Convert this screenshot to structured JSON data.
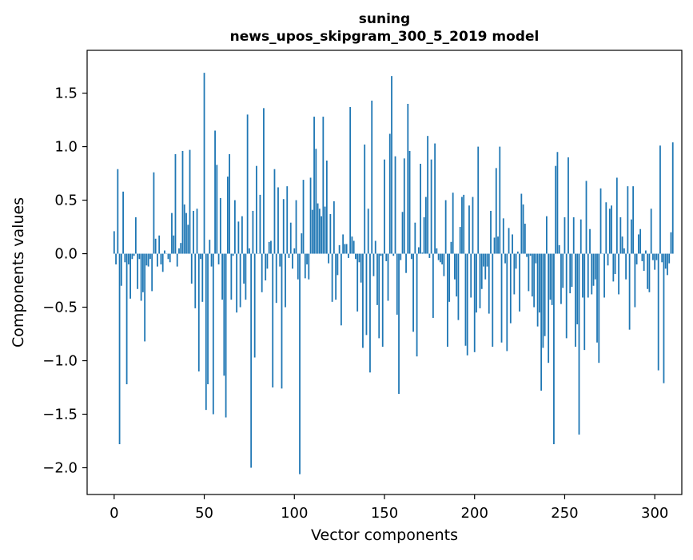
{
  "chart_data": {
    "type": "bar",
    "title_line1": "suning",
    "title_line2": "news_upos_skipgram_300_5_2019 model",
    "xlabel": "Vector components",
    "ylabel": "Components values",
    "xlim": [
      -15,
      315
    ],
    "ylim": [
      -2.25,
      1.9
    ],
    "xticks": [
      0,
      50,
      100,
      150,
      200,
      250,
      300
    ],
    "xtick_labels": [
      "0",
      "50",
      "100",
      "150",
      "200",
      "250",
      "300"
    ],
    "yticks": [
      -2.0,
      -1.5,
      -1.0,
      -0.5,
      0.0,
      0.5,
      1.0,
      1.5
    ],
    "ytick_labels": [
      "−2.0",
      "−1.5",
      "−1.0",
      "−0.5",
      "0.0",
      "0.5",
      "1.0",
      "1.5"
    ],
    "bar_color": "#1f77b4",
    "values": [
      0.21,
      -0.1,
      0.79,
      -1.78,
      -0.3,
      0.58,
      -0.08,
      -1.22,
      -0.1,
      -0.42,
      -0.05,
      -0.02,
      0.34,
      -0.33,
      -0.05,
      -0.44,
      -0.36,
      -0.82,
      -0.11,
      -0.12,
      -0.05,
      -0.35,
      0.76,
      0.14,
      -0.12,
      0.17,
      -0.1,
      -0.17,
      0.03,
      0.0,
      -0.05,
      -0.08,
      0.38,
      0.17,
      0.93,
      -0.12,
      0.05,
      0.1,
      0.96,
      0.46,
      0.38,
      0.27,
      0.97,
      -0.28,
      0.4,
      -0.51,
      0.42,
      -1.1,
      -0.05,
      -0.45,
      1.69,
      -1.46,
      -1.22,
      0.13,
      -0.12,
      -1.5,
      1.15,
      0.83,
      -0.1,
      0.52,
      -0.43,
      -1.14,
      -1.53,
      0.72,
      0.93,
      -0.43,
      -0.02,
      0.5,
      -0.55,
      0.3,
      -0.5,
      0.35,
      -0.28,
      -0.43,
      1.3,
      0.05,
      -2.0,
      0.4,
      -0.97,
      0.82,
      0.0,
      0.55,
      -0.36,
      1.36,
      -0.25,
      -0.14,
      0.11,
      0.12,
      -1.25,
      0.79,
      -0.46,
      0.62,
      -0.12,
      -1.26,
      0.51,
      -0.5,
      0.63,
      -0.04,
      0.29,
      -0.14,
      0.05,
      0.5,
      -0.24,
      -2.06,
      0.19,
      0.69,
      -0.23,
      -0.1,
      -0.24,
      0.71,
      0.41,
      1.28,
      0.98,
      0.47,
      0.42,
      0.35,
      1.28,
      0.44,
      0.87,
      -0.09,
      0.37,
      -0.45,
      0.49,
      -0.43,
      -0.2,
      0.08,
      -0.67,
      0.18,
      0.09,
      0.09,
      -0.04,
      1.37,
      0.16,
      0.12,
      -0.05,
      -0.54,
      -0.08,
      -0.27,
      -0.88,
      1.02,
      -0.76,
      0.42,
      -1.11,
      1.43,
      -0.21,
      0.12,
      -0.48,
      -0.79,
      -0.02,
      -0.87,
      0.88,
      -0.07,
      -0.44,
      1.12,
      1.66,
      -0.02,
      0.91,
      -0.57,
      -1.31,
      -0.06,
      0.39,
      0.89,
      -0.18,
      1.4,
      0.96,
      -0.05,
      -0.73,
      0.29,
      -0.96,
      0.06,
      0.84,
      0.01,
      0.34,
      0.53,
      1.1,
      -0.04,
      0.88,
      -0.6,
      1.03,
      0.05,
      -0.06,
      -0.08,
      -0.1,
      -0.21,
      0.5,
      -0.87,
      -0.45,
      0.11,
      0.57,
      -0.24,
      -0.4,
      -0.62,
      0.25,
      0.53,
      0.55,
      -0.86,
      -0.95,
      0.45,
      -0.41,
      0.53,
      -0.92,
      -0.55,
      1.0,
      -0.51,
      -0.33,
      -0.12,
      -0.24,
      -0.12,
      -0.56,
      0.4,
      -0.87,
      0.15,
      0.8,
      0.16,
      1.0,
      -0.83,
      0.33,
      -0.09,
      -0.91,
      0.24,
      -0.65,
      0.18,
      -0.38,
      -0.14,
      0.02,
      -0.54,
      0.56,
      0.46,
      0.28,
      -0.03,
      -0.35,
      -0.02,
      -0.4,
      -0.5,
      -0.09,
      -0.68,
      -0.55,
      -1.28,
      -0.88,
      -0.77,
      0.35,
      -1.02,
      -0.43,
      -0.48,
      -1.78,
      0.82,
      0.95,
      0.08,
      -0.47,
      -0.32,
      0.34,
      -0.79,
      0.9,
      -0.37,
      -0.31,
      0.34,
      -0.87,
      -0.66,
      -1.69,
      0.32,
      -0.41,
      -0.9,
      0.68,
      -0.41,
      0.23,
      -0.38,
      -0.3,
      -0.24,
      -0.83,
      -1.02,
      0.61,
      0.0,
      -0.41,
      0.48,
      -0.11,
      0.42,
      0.45,
      -0.26,
      -0.19,
      0.71,
      -0.38,
      0.34,
      0.16,
      0.05,
      -0.24,
      0.63,
      -0.71,
      0.32,
      0.63,
      -0.5,
      -0.1,
      0.18,
      0.23,
      -0.07,
      -0.16,
      0.03,
      -0.33,
      -0.36,
      0.42,
      -0.06,
      -0.15,
      -0.06,
      -1.09,
      1.01,
      -0.08,
      -1.21,
      -0.14,
      -0.2,
      -0.09,
      0.2,
      1.04
    ]
  }
}
